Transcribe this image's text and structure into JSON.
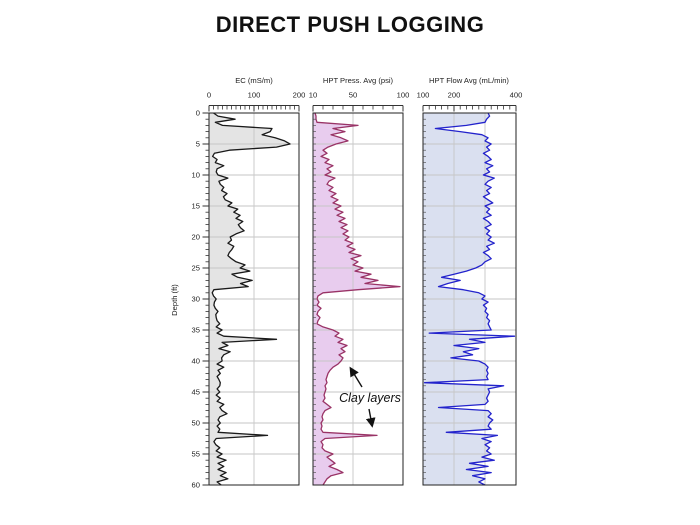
{
  "title": "DIRECT PUSH LOGGING",
  "depth_axis": {
    "label": "Depth (ft)"
  },
  "annotation": {
    "text": "Clay layers"
  },
  "colors": {
    "background": "#ffffff",
    "title_text": "#111111",
    "plot_border": "#222222",
    "gridline": "#c6c6c6",
    "ec_line": "#1a1a1a",
    "ec_fill": "#e4e4e4",
    "press_line": "#993366",
    "press_fill": "#e8ccee",
    "flow_line": "#2323cc",
    "flow_fill": "#dae0f0",
    "annotation_arrow": "#111111"
  },
  "chart_data": {
    "type": "line",
    "title": "DIRECT PUSH LOGGING",
    "orientation": "vertical-depth-profile",
    "ylabel": "Depth (ft)",
    "ylim": [
      0,
      60
    ],
    "y_ticks": [
      0,
      5,
      10,
      15,
      20,
      25,
      30,
      35,
      40,
      45,
      50,
      55,
      60
    ],
    "y_minor_step_ft": 1,
    "depth_start_ft": 0,
    "depth_step_ft": 0.5,
    "annotation": "Clay layers",
    "legend_position": "none",
    "grid": "on",
    "series": [
      {
        "name": "EC (mS/m)",
        "xlim": [
          0,
          200
        ],
        "x_ticks": [
          0,
          100,
          200
        ],
        "x_minor_step": 10,
        "gridlines": [
          100
        ],
        "line_color": "#1a1a1a",
        "fill_color": "#e4e4e4",
        "values": [
          10,
          20,
          58,
          14,
          30,
          140,
          136,
          118,
          147,
          168,
          180,
          150,
          45,
          12,
          8,
          18,
          14,
          33,
          18,
          16,
          20,
          42,
          22,
          25,
          33,
          28,
          40,
          32,
          36,
          51,
          42,
          64,
          55,
          69,
          60,
          75,
          65,
          70,
          78,
          60,
          47,
          50,
          42,
          55,
          51,
          45,
          42,
          50,
          60,
          80,
          69,
          91,
          51,
          64,
          96,
          70,
          87,
          11,
          7,
          10,
          16,
          12,
          11,
          14,
          20,
          15,
          16,
          18,
          24,
          16,
          29,
          18,
          33,
          150,
          29,
          42,
          22,
          47,
          33,
          28,
          29,
          18,
          33,
          20,
          25,
          18,
          22,
          25,
          24,
          18,
          24,
          16,
          25,
          18,
          33,
          24,
          29,
          40,
          24,
          20,
          25,
          18,
          24,
          20,
          130,
          16,
          11,
          15,
          24,
          16,
          29,
          18,
          38,
          20,
          33,
          20,
          38,
          25,
          42,
          18,
          27
        ]
      },
      {
        "name": "HPT Press. Avg (psi)",
        "xlim": [
          10,
          100
        ],
        "x_ticks": [
          10,
          50,
          100
        ],
        "x_minor_step": 10,
        "gridlines": [
          50
        ],
        "line_color": "#993366",
        "fill_color": "#e8ccee",
        "values": [
          12,
          13,
          13,
          14,
          55,
          30,
          42,
          28,
          38,
          45,
          33,
          25,
          20,
          24,
          18,
          26,
          22,
          30,
          24,
          28,
          22,
          32,
          26,
          24,
          30,
          26,
          33,
          28,
          35,
          30,
          38,
          32,
          40,
          34,
          42,
          36,
          44,
          38,
          45,
          40,
          46,
          42,
          50,
          44,
          52,
          46,
          58,
          48,
          55,
          50,
          60,
          52,
          68,
          58,
          75,
          62,
          97,
          55,
          20,
          15,
          14,
          16,
          14,
          18,
          15,
          14,
          17,
          15,
          14,
          20,
          30,
          36,
          32,
          40,
          35,
          44,
          38,
          42,
          36,
          40,
          38,
          35,
          30,
          27,
          25,
          24,
          23,
          24,
          22,
          23,
          22,
          21,
          22,
          20,
          24,
          28,
          22,
          20,
          19,
          20,
          18,
          19,
          18,
          20,
          74,
          22,
          18,
          20,
          19,
          22,
          30,
          24,
          28,
          32,
          26,
          34,
          40,
          28,
          24,
          22,
          20
        ]
      },
      {
        "name": "HPT Flow Avg (mL/min)",
        "xlim": [
          100,
          400
        ],
        "x_ticks": [
          100,
          200,
          400
        ],
        "x_minor_step": 20,
        "gridlines": [
          200,
          300
        ],
        "line_color": "#2323cc",
        "fill_color": "#dae0f0",
        "values": [
          310,
          315,
          305,
          300,
          240,
          140,
          220,
          290,
          310,
          300,
          320,
          305,
          315,
          295,
          310,
          320,
          300,
          325,
          305,
          315,
          295,
          330,
          310,
          300,
          320,
          305,
          315,
          295,
          310,
          325,
          300,
          315,
          305,
          320,
          295,
          310,
          320,
          300,
          315,
          305,
          320,
          310,
          330,
          305,
          315,
          295,
          310,
          320,
          300,
          290,
          270,
          240,
          200,
          160,
          220,
          180,
          150,
          230,
          280,
          300,
          290,
          310,
          295,
          305,
          300,
          310,
          305,
          315,
          310,
          315,
          320,
          120,
          395,
          250,
          300,
          200,
          280,
          230,
          260,
          190,
          280,
          300,
          310,
          305,
          310,
          305,
          310,
          105,
          360,
          310,
          315,
          310,
          305,
          310,
          300,
          150,
          310,
          320,
          310,
          325,
          315,
          310,
          320,
          175,
          340,
          290,
          320,
          300,
          315,
          305,
          320,
          290,
          330,
          250,
          310,
          240,
          320,
          260,
          300,
          280,
          300
        ]
      }
    ]
  }
}
